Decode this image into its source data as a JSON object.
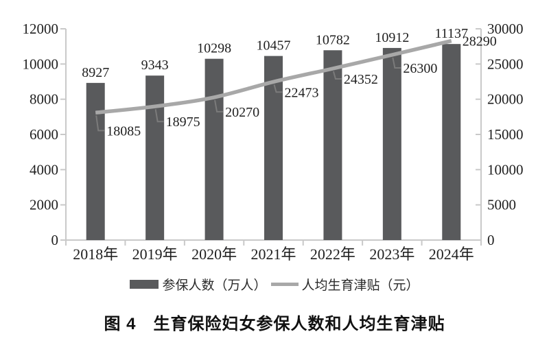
{
  "figure": {
    "caption": "图 4　生育保险妇女参保人数和人均生育津贴"
  },
  "chart_data": {
    "type": "combo-bar-line",
    "title": "图 4　生育保险妇女参保人数和人均生育津贴",
    "categories": [
      "2018年",
      "2019年",
      "2020年",
      "2021年",
      "2022年",
      "2023年",
      "2024年"
    ],
    "series": [
      {
        "name": "参保人数（万人）",
        "type": "bar",
        "axis": "left",
        "color": "#595a5c",
        "values": [
          8927,
          9343,
          10298,
          10457,
          10782,
          10912,
          11137
        ]
      },
      {
        "name": "人均生育津贴（元）",
        "type": "line",
        "axis": "right",
        "color": "#a8a8a8",
        "values": [
          18085,
          18975,
          20270,
          22473,
          24352,
          26300,
          28290
        ]
      }
    ],
    "left_axis": {
      "min": 0,
      "max": 12000,
      "step": 2000,
      "tick_labels": [
        "0",
        "2000",
        "4000",
        "6000",
        "8000",
        "10000",
        "12000"
      ]
    },
    "right_axis": {
      "min": 0,
      "max": 30000,
      "step": 5000,
      "tick_labels": [
        "0",
        "5000",
        "10000",
        "15000",
        "20000",
        "25000",
        "30000"
      ]
    },
    "legend_position": "bottom",
    "grid": false,
    "data_labels": true
  },
  "legend": {
    "items": [
      {
        "label": "参保人数（万人）",
        "swatch": "bar"
      },
      {
        "label": "人均生育津贴（元）",
        "swatch": "line"
      }
    ]
  },
  "colors": {
    "bar": "#595a5c",
    "line": "#a8a8a8",
    "leader": "#7b7b7b",
    "axis": "#c9c9c9",
    "text": "#1f1f1f"
  }
}
